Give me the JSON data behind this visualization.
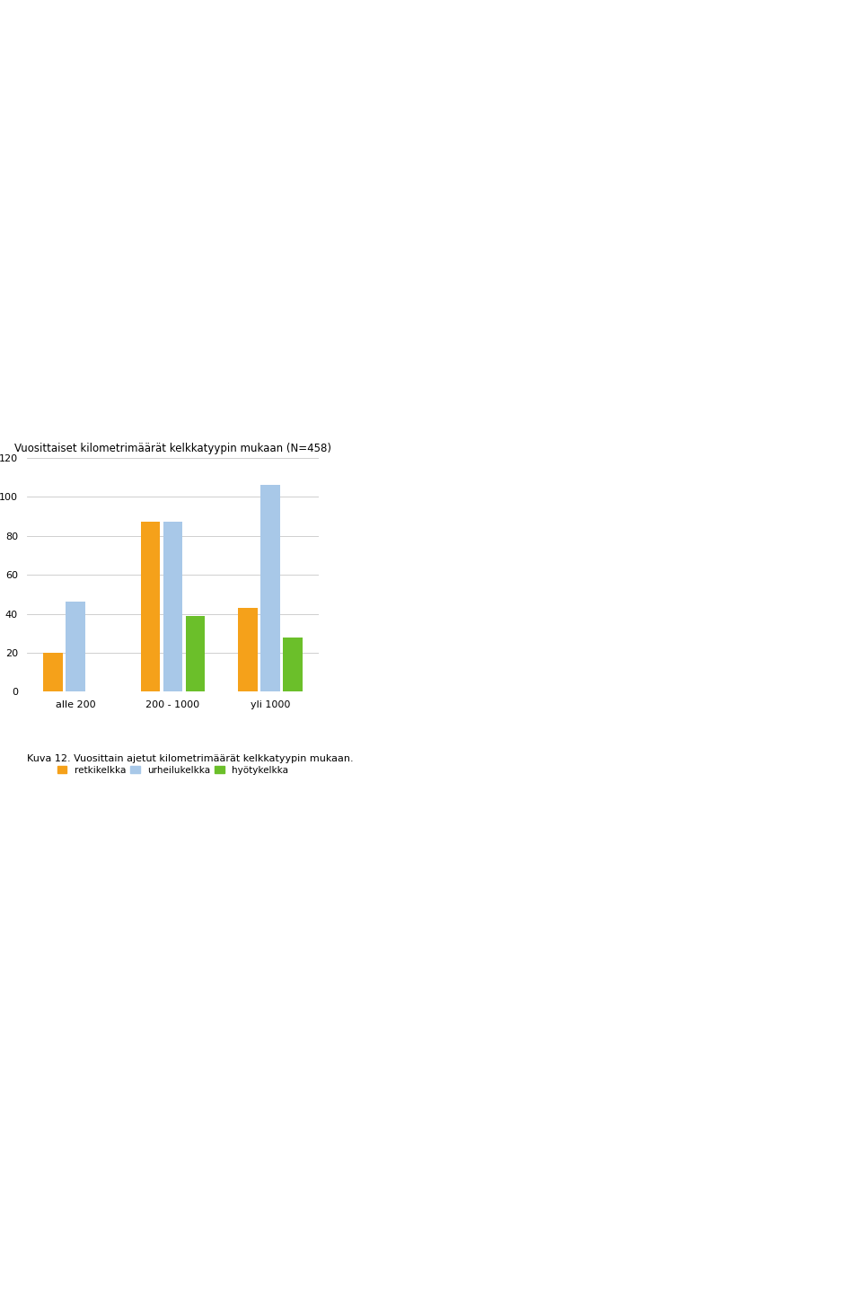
{
  "title": "Vuosittaiset kilometrimäärät kelkkatyypin mukaan (N=458)",
  "categories": [
    "alle 200",
    "200 - 1000",
    "yli 1000"
  ],
  "bar_values": [
    [
      20,
      46,
      0
    ],
    [
      87,
      87,
      39
    ],
    [
      43,
      106,
      28
    ]
  ],
  "colors": {
    "retkikelkka": "#F5A11A",
    "urheilukelkka": "#A8C8E8",
    "hyötykelkka": "#6BBF2A"
  },
  "ylim": [
    0,
    120
  ],
  "yticks": [
    0,
    20,
    40,
    60,
    80,
    100,
    120
  ],
  "legend_labels": [
    "retkikelkka",
    "urheilukelkka",
    "hyötykelkka"
  ],
  "caption": "Kuva 12. Vuosittain ajetut kilometrimäärät kelkkatyypin mukaan.",
  "background_color": "#FFFFFF",
  "plot_background": "#FFFFFF",
  "grid_color": "#C8C8C8",
  "title_fontsize": 8.5,
  "axis_fontsize": 8,
  "legend_fontsize": 7.5,
  "caption_fontsize": 8
}
